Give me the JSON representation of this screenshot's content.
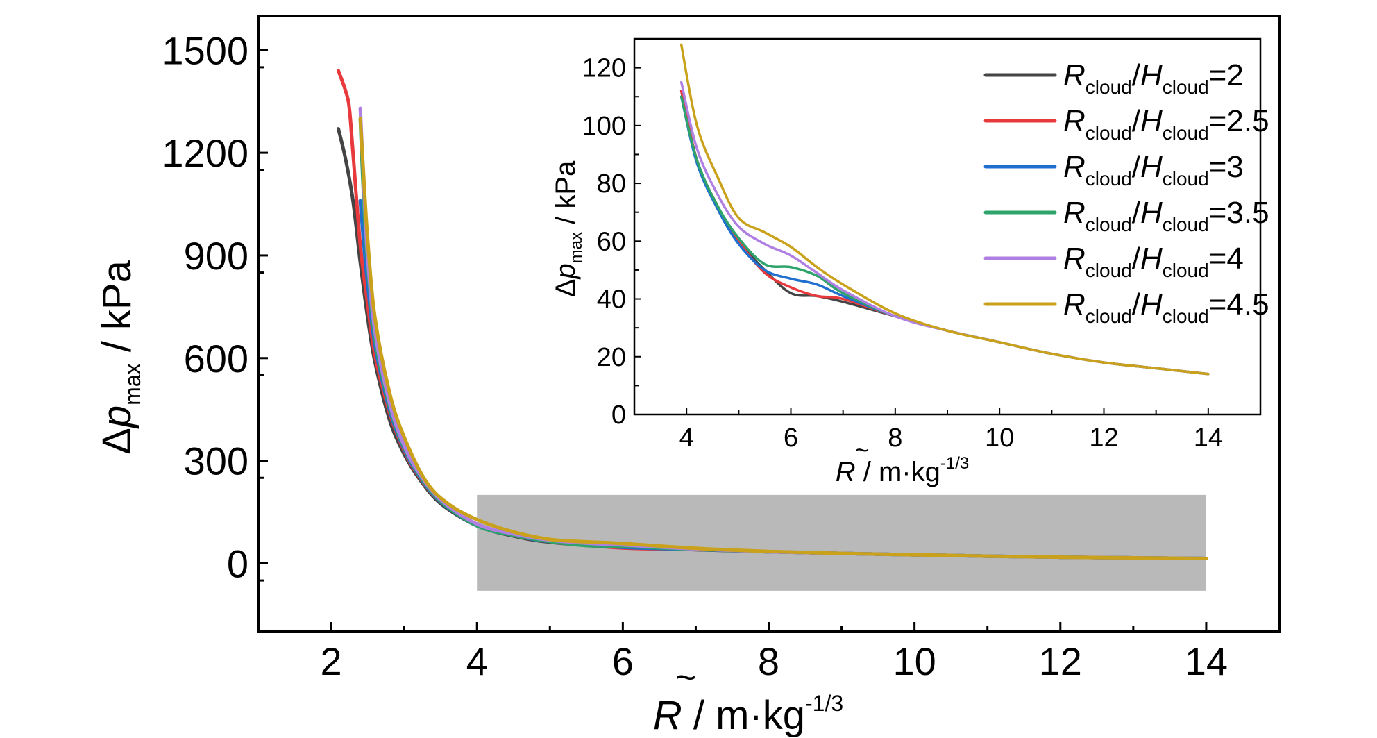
{
  "chart_data": [
    {
      "type": "line",
      "panel": "main",
      "xlabel": {
        "symbol": "R",
        "text": " / m·kg",
        "sup": "-1/3"
      },
      "ylabel": {
        "delta": "Δ",
        "symbol": "p",
        "sub": "max",
        "text": " / kPa"
      },
      "xlim": [
        1,
        15
      ],
      "ylim": [
        -200,
        1600
      ],
      "xticks": [
        2,
        4,
        6,
        8,
        10,
        12,
        14
      ],
      "xtick_labels": [
        "2",
        "4",
        "6",
        "8",
        "10",
        "12",
        "14"
      ],
      "yticks": [
        0,
        300,
        600,
        900,
        1200,
        1500
      ],
      "ytick_labels": [
        "0",
        "300",
        "600",
        "900",
        "1200",
        "1500"
      ],
      "highlight_region": {
        "x": [
          4,
          14
        ],
        "y": [
          -80,
          200
        ],
        "color": "#b9b9b9"
      },
      "series": [
        {
          "color": "#444444",
          "x": [
            2.1,
            2.2,
            2.3,
            2.4,
            2.5,
            2.6,
            2.8,
            3.0,
            3.2,
            3.5,
            4.0,
            4.5,
            5.0,
            6.0,
            7.0,
            8.0,
            9.0,
            10.0,
            11.0,
            12.0,
            13.0,
            14.0
          ],
          "y": [
            1270,
            1180,
            1060,
            880,
            720,
            590,
            420,
            320,
            250,
            175,
            110,
            80,
            62,
            46,
            40,
            34,
            29,
            25,
            21,
            18,
            16,
            14
          ]
        },
        {
          "color": "#e8393c",
          "x": [
            2.1,
            2.2,
            2.25,
            2.3,
            2.4,
            2.5,
            2.6,
            2.8,
            3.0,
            3.2,
            3.5,
            4.0,
            4.5,
            5.0,
            6.0,
            7.0,
            8.0,
            9.0,
            10.0,
            11.0,
            12.0,
            13.0,
            14.0
          ],
          "y": [
            1440,
            1380,
            1330,
            1200,
            930,
            760,
            610,
            440,
            330,
            255,
            180,
            112,
            82,
            64,
            45,
            41,
            34,
            29,
            25,
            21,
            18,
            16,
            14
          ]
        },
        {
          "color": "#1f6fcf",
          "x": [
            2.4,
            2.45,
            2.5,
            2.6,
            2.8,
            3.0,
            3.2,
            3.5,
            4.0,
            4.5,
            5.0,
            6.0,
            7.0,
            8.0,
            9.0,
            10.0,
            11.0,
            12.0,
            13.0,
            14.0
          ],
          "y": [
            1060,
            930,
            820,
            640,
            450,
            335,
            258,
            180,
            110,
            82,
            64,
            47,
            41,
            34,
            29,
            25,
            21,
            18,
            16,
            14
          ]
        },
        {
          "color": "#2ea36b",
          "x": [
            2.4,
            2.45,
            2.5,
            2.6,
            2.8,
            3.0,
            3.2,
            3.5,
            4.0,
            4.5,
            5.0,
            5.5,
            6.0,
            7.0,
            8.0,
            9.0,
            10.0,
            11.0,
            12.0,
            13.0,
            14.0
          ],
          "y": [
            1300,
            1050,
            880,
            660,
            460,
            340,
            262,
            182,
            110,
            82,
            64,
            52,
            50,
            41,
            34,
            29,
            25,
            21,
            18,
            16,
            14
          ]
        },
        {
          "color": "#b07fe3",
          "x": [
            2.4,
            2.45,
            2.5,
            2.6,
            2.8,
            3.0,
            3.2,
            3.5,
            4.0,
            4.5,
            5.0,
            5.5,
            6.0,
            7.0,
            8.0,
            9.0,
            10.0,
            11.0,
            12.0,
            13.0,
            14.0
          ],
          "y": [
            1330,
            1100,
            900,
            680,
            470,
            345,
            266,
            186,
            115,
            86,
            68,
            59,
            54,
            42,
            34,
            29,
            25,
            21,
            18,
            16,
            14
          ]
        },
        {
          "color": "#c9a11a",
          "x": [
            2.4,
            2.45,
            2.5,
            2.6,
            2.8,
            3.0,
            3.3,
            3.6,
            4.0,
            4.5,
            5.0,
            5.5,
            6.0,
            7.0,
            8.0,
            9.0,
            10.0,
            11.0,
            12.0,
            13.0,
            14.0
          ],
          "y": [
            1300,
            1120,
            950,
            720,
            500,
            370,
            240,
            175,
            128,
            92,
            70,
            63,
            58,
            44,
            35,
            29,
            25,
            21,
            18,
            16,
            14
          ]
        }
      ]
    },
    {
      "type": "line",
      "panel": "inset",
      "xlabel": {
        "symbol": "R",
        "text": " / m·kg",
        "sup": "-1/3"
      },
      "ylabel": {
        "delta": "Δ",
        "symbol": "p",
        "sub": "max",
        "text": " / kPa"
      },
      "xlim": [
        3,
        15
      ],
      "ylim": [
        0,
        130
      ],
      "xticks": [
        4,
        6,
        8,
        10,
        12,
        14
      ],
      "xtick_labels": [
        "4",
        "6",
        "8",
        "10",
        "12",
        "14"
      ],
      "yticks": [
        0,
        20,
        40,
        60,
        80,
        100,
        120
      ],
      "ytick_labels": [
        "0",
        "20",
        "40",
        "60",
        "80",
        "100",
        "120"
      ],
      "legend": {
        "position": "top-right"
      },
      "series": [
        {
          "legend": {
            "r": "R",
            "rsub": "cloud",
            "h": "H",
            "hsub": "cloud",
            "value": "=2"
          },
          "color": "#444444",
          "x": [
            3.9,
            4.2,
            4.6,
            5.0,
            5.5,
            6.0,
            6.5,
            7.0,
            8.0,
            9.0,
            10.0,
            11.0,
            12.0,
            13.0,
            14.0
          ],
          "y": [
            112,
            88,
            72,
            60,
            50,
            42,
            41,
            39,
            34,
            29,
            25,
            21,
            18,
            16,
            14
          ]
        },
        {
          "legend": {
            "r": "R",
            "rsub": "cloud",
            "h": "H",
            "hsub": "cloud",
            "value": "=2.5"
          },
          "color": "#e8393c",
          "x": [
            3.9,
            4.2,
            4.6,
            5.0,
            5.5,
            6.0,
            6.5,
            7.0,
            8.0,
            9.0,
            10.0,
            11.0,
            12.0,
            13.0,
            14.0
          ],
          "y": [
            112,
            88,
            72,
            60,
            49,
            44,
            41,
            40,
            34,
            29,
            25,
            21,
            18,
            16,
            14
          ]
        },
        {
          "legend": {
            "r": "R",
            "rsub": "cloud",
            "h": "H",
            "hsub": "cloud",
            "value": "=3"
          },
          "color": "#1f6fcf",
          "x": [
            3.9,
            4.2,
            4.6,
            5.0,
            5.5,
            6.0,
            6.5,
            7.0,
            8.0,
            9.0,
            10.0,
            11.0,
            12.0,
            13.0,
            14.0
          ],
          "y": [
            110,
            87,
            71,
            59,
            50,
            47,
            45,
            41,
            34,
            29,
            25,
            21,
            18,
            16,
            14
          ]
        },
        {
          "legend": {
            "r": "R",
            "rsub": "cloud",
            "h": "H",
            "hsub": "cloud",
            "value": "=3.5"
          },
          "color": "#2ea36b",
          "x": [
            3.9,
            4.2,
            4.6,
            5.0,
            5.5,
            6.0,
            6.5,
            7.0,
            8.0,
            9.0,
            10.0,
            11.0,
            12.0,
            13.0,
            14.0
          ],
          "y": [
            110,
            88,
            72,
            61,
            52,
            51,
            48,
            42,
            34,
            29,
            25,
            21,
            18,
            16,
            14
          ]
        },
        {
          "legend": {
            "r": "R",
            "rsub": "cloud",
            "h": "H",
            "hsub": "cloud",
            "value": "=4"
          },
          "color": "#b07fe3",
          "x": [
            3.9,
            4.2,
            4.6,
            5.0,
            5.5,
            6.0,
            6.5,
            7.0,
            8.0,
            9.0,
            10.0,
            11.0,
            12.0,
            13.0,
            14.0
          ],
          "y": [
            115,
            92,
            76,
            65,
            59,
            55,
            49,
            43,
            34,
            29,
            25,
            21,
            18,
            16,
            14
          ]
        },
        {
          "legend": {
            "r": "R",
            "rsub": "cloud",
            "h": "H",
            "hsub": "cloud",
            "value": "=4.5"
          },
          "color": "#c9a11a",
          "x": [
            3.9,
            4.2,
            4.6,
            5.0,
            5.5,
            6.0,
            6.5,
            7.0,
            8.0,
            9.0,
            10.0,
            11.0,
            12.0,
            13.0,
            14.0
          ],
          "y": [
            128,
            100,
            82,
            68,
            63,
            58,
            51,
            45,
            35,
            29,
            25,
            21,
            18,
            16,
            14
          ]
        }
      ]
    }
  ]
}
